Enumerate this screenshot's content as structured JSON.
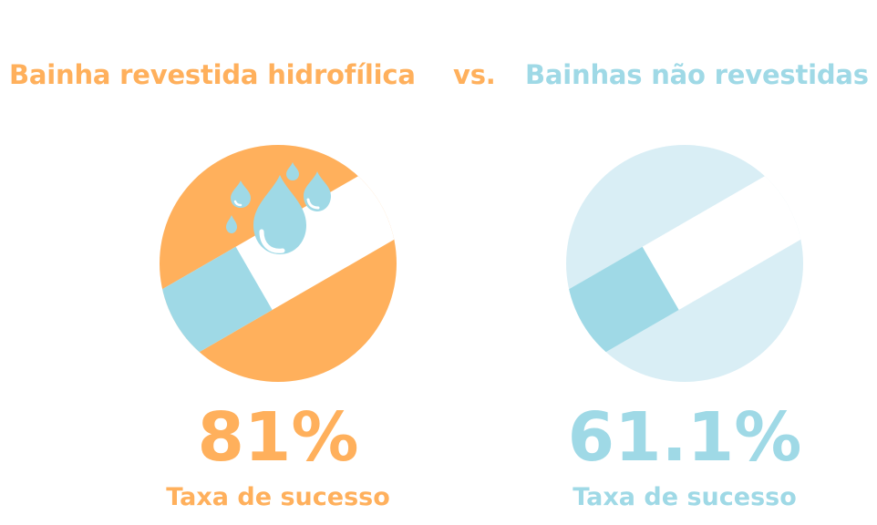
{
  "colors": {
    "orange": "#ffb05c",
    "blue": "#9fd9e6",
    "light_blue": "#d9eef5",
    "white": "#ffffff"
  },
  "header": {
    "left_title": "Bainha revestida hidrofílica",
    "vs": "vs.",
    "right_title": "Bainhas não revestidas"
  },
  "left_panel": {
    "icon": "coated-sheath-with-water-drops-icon",
    "stat": "81%",
    "stat_value": 81,
    "caption": "Taxa de sucesso"
  },
  "right_panel": {
    "icon": "uncoated-sheath-icon",
    "stat": "61.1%",
    "stat_value": 61.1,
    "caption": "Taxa de sucesso"
  }
}
